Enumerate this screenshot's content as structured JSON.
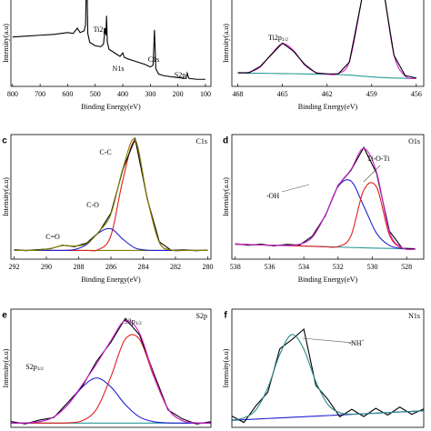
{
  "chart_data": [
    {
      "type": "line",
      "x_label": "Binding Energy(eV)",
      "y_label": "Intensity(a.u)",
      "xlim": [
        806,
        80
      ],
      "ylim": [
        0,
        100
      ],
      "xticks": [
        800,
        700,
        600,
        500,
        400,
        300,
        200,
        100
      ],
      "x": [
        800,
        750,
        700,
        650,
        600,
        580,
        565,
        555,
        540,
        535,
        531,
        527,
        520,
        500,
        480,
        470,
        464,
        461,
        459,
        456,
        450,
        430,
        410,
        400,
        395,
        380,
        350,
        320,
        300,
        290,
        285,
        280,
        270,
        250,
        200,
        170,
        166,
        160,
        130,
        100
      ],
      "series": [
        {
          "color": "#000000",
          "values": [
            56,
            57,
            58,
            59,
            61,
            60,
            66,
            61,
            63,
            70,
            140,
            60,
            50,
            46,
            45,
            48,
            66,
            58,
            80,
            50,
            42,
            38,
            34,
            38,
            33,
            31,
            28,
            25,
            22,
            24,
            64,
            20,
            14,
            12,
            10,
            9,
            15,
            9,
            8,
            8
          ]
        }
      ],
      "annotations": [
        {
          "text": "Ti2p"
        },
        {
          "text": "N1s"
        },
        {
          "text": "C1s"
        },
        {
          "text": "S2p"
        }
      ]
    },
    {
      "type": "line",
      "x_label": "Binding Energy(eV)",
      "y_label": "Intensity(a.u)",
      "xlim": [
        468.4,
        455.5
      ],
      "ylim": [
        0,
        100
      ],
      "xticks": [
        468,
        465,
        462,
        459,
        456
      ],
      "x": [
        468,
        467.25,
        466.5,
        465.75,
        465,
        464.25,
        463.5,
        462.75,
        462,
        461.25,
        460.5,
        459.75,
        459,
        458.25,
        457.5,
        456.75,
        456
      ],
      "series": [
        {
          "color": "#2a9a9a",
          "values": [
            15,
            15,
            14.9,
            14.7,
            14.5,
            14.3,
            14.1,
            13.9,
            13.7,
            13.4,
            12.8,
            11.8,
            10.8,
            10,
            9.5,
            9.2,
            9
          ]
        },
        {
          "color": "#d020d0",
          "values": [
            15.1,
            16.1,
            21.9,
            36.5,
            48.3,
            40.5,
            24.2,
            15.9,
            13.9,
            14.5,
            28.2,
            90.8,
            159.5,
            113,
            35.8,
            11.7,
            9.1
          ]
        },
        {
          "color": "#000000",
          "values": [
            15.6,
            15.4,
            22.6,
            35.8,
            49.1,
            39.7,
            24.9,
            15.2,
            14.3,
            14.1,
            27.5,
            91.6,
            158.7,
            114,
            35.1,
            12.3,
            9.4
          ]
        }
      ],
      "annotations": [
        {
          "text": "Ti2p",
          "sub": "1/2"
        }
      ]
    },
    {
      "type": "line",
      "panel": "c",
      "title": "C1s",
      "x_label": "Binding Energy(eV)",
      "y_label": "Intensity(a.u)",
      "xlim": [
        292.2,
        279.8
      ],
      "ylim": [
        0,
        100
      ],
      "xticks": [
        292,
        290,
        288,
        286,
        284,
        282,
        280
      ],
      "x": [
        292,
        291.25,
        290.5,
        289.75,
        289,
        288.25,
        287.5,
        286.75,
        286,
        285.25,
        284.5,
        283.75,
        283,
        282.25,
        281.5,
        280.75,
        280
      ],
      "series": [
        {
          "color": "#808000",
          "values": [
            7,
            7,
            7,
            7,
            7,
            7,
            7,
            7,
            7,
            7,
            7,
            7,
            7,
            7,
            7,
            7,
            7
          ]
        },
        {
          "color": "#e02020",
          "values": [
            7,
            7,
            7,
            7,
            7,
            7,
            7,
            7.8,
            18.9,
            64.2,
            94.1,
            49.1,
            13.5,
            7.3,
            7,
            7,
            7
          ]
        },
        {
          "color": "#2020d0",
          "values": [
            7,
            7,
            7,
            7,
            7,
            7.7,
            11.8,
            21.2,
            24.4,
            15.9,
            8.9,
            7.2,
            7,
            7,
            7,
            7,
            7
          ]
        },
        {
          "color": "#000000",
          "values": [
            7.5,
            6.8,
            7.6,
            8.3,
            11.2,
            10.1,
            12.9,
            21.5,
            36.9,
            72.4,
            96.8,
            48.5,
            13.9,
            7,
            7.4,
            6.8,
            7.2
          ]
        },
        {
          "color": "#808000",
          "values": [
            7,
            7,
            7.2,
            8.6,
            10.8,
            10.6,
            12.5,
            22,
            36.3,
            73.1,
            96,
            49.3,
            13.5,
            7.3,
            7,
            7,
            7
          ]
        }
      ],
      "annotations": [
        {
          "text": "C-C"
        },
        {
          "text": "C-O"
        },
        {
          "text": "C=O"
        }
      ]
    },
    {
      "type": "line",
      "panel": "d",
      "title": "O1s",
      "x_label": "Binding Energy(eV)",
      "y_label": "Intensity(a.u)",
      "xlim": [
        538.2,
        527
      ],
      "ylim": [
        0,
        100
      ],
      "xticks": [
        538,
        536,
        534,
        532,
        530,
        528
      ],
      "x": [
        538,
        537.25,
        536.5,
        535.75,
        535,
        534.25,
        533.5,
        532.75,
        532,
        531.25,
        530.5,
        529.75,
        529,
        528.25,
        527.5
      ],
      "series": [
        {
          "color": "#2a9a9a",
          "values": [
            12,
            11.7,
            11.4,
            11.1,
            10.9,
            10.6,
            10.3,
            10,
            9.7,
            9.4,
            9.1,
            8.8,
            8.6,
            8.3,
            8
          ]
        },
        {
          "color": "#2020d0",
          "values": [
            12,
            11.7,
            11.4,
            11.1,
            11,
            11.9,
            17.7,
            35.2,
            58.2,
            62.7,
            42.5,
            20.7,
            11,
            8.6,
            8
          ]
        },
        {
          "color": "#e02020",
          "values": [
            12,
            11.7,
            11.4,
            11.1,
            10.9,
            10.6,
            10.3,
            10,
            10.1,
            18.6,
            55.5,
            57.8,
            19.4,
            8.8,
            8
          ]
        },
        {
          "color": "#000000",
          "values": [
            12.4,
            11.2,
            12,
            10.6,
            11.8,
            11.3,
            18.5,
            34.6,
            59.3,
            71.2,
            89.7,
            68.9,
            22.5,
            8.7,
            8.4
          ]
        },
        {
          "color": "#d020d0",
          "values": [
            12,
            11.7,
            11.4,
            11.1,
            11,
            11.9,
            17.7,
            35.2,
            58.6,
            71.9,
            88.9,
            69.7,
            21.8,
            9.1,
            8
          ]
        }
      ],
      "annotations": [
        {
          "text": "-OH"
        },
        {
          "text": "Ti-O-Ti"
        }
      ]
    },
    {
      "type": "line",
      "panel": "e",
      "title": "S2p",
      "y_label": "Intensity(a.u)",
      "xlim": [
        172,
        158
      ],
      "ylim": [
        0,
        110
      ],
      "x": [
        172,
        171,
        170,
        169,
        168,
        167,
        166,
        165,
        164,
        163,
        162,
        161,
        160,
        159,
        158
      ],
      "series": [
        {
          "color": "#2a9a9a",
          "values": [
            4,
            4,
            4,
            4,
            4,
            4,
            4,
            4,
            4,
            4,
            4,
            4,
            4,
            4,
            4
          ]
        },
        {
          "color": "#e02020",
          "values": [
            4,
            4,
            4,
            4,
            4.2,
            6.2,
            17.2,
            47.2,
            82,
            82,
            47.2,
            17.2,
            6.2,
            4.2,
            4
          ]
        },
        {
          "color": "#2020d0",
          "values": [
            4,
            4.2,
            5.2,
            9.7,
            21.3,
            37.6,
            46,
            37.6,
            21.3,
            9.7,
            5.2,
            4.2,
            4,
            4,
            4
          ]
        },
        {
          "color": "#000000",
          "values": [
            5.5,
            3.2,
            6.8,
            9.1,
            23.4,
            38.2,
            61.5,
            79.3,
            101.2,
            86.1,
            50.3,
            16.2,
            7.9,
            3.1,
            5.2
          ]
        },
        {
          "color": "#d020d0",
          "values": [
            4,
            4.2,
            5.2,
            9.7,
            21.5,
            39.8,
            59.2,
            80.8,
            99.3,
            87.7,
            48.4,
            17.4,
            6.2,
            4.2,
            4
          ]
        }
      ],
      "annotations": [
        {
          "text": "S2p",
          "sub": "1/2"
        },
        {
          "text": "S2p",
          "sub": "3/2"
        }
      ]
    },
    {
      "type": "line",
      "panel": "f",
      "title": "N1s",
      "y_label": "Intensity(a.u)",
      "xlim": [
        406,
        394
      ],
      "ylim": [
        0,
        100
      ],
      "x": [
        406,
        405.25,
        404.5,
        403.75,
        403,
        402.25,
        401.5,
        400.75,
        400,
        399.25,
        398.5,
        397.75,
        397,
        396.25,
        395.5,
        394.75,
        394
      ],
      "series": [
        {
          "color": "#2020d0",
          "values": [
            6,
            6.5,
            7,
            7.5,
            8,
            8.5,
            9,
            9.5,
            10,
            10.5,
            11,
            11.5,
            12,
            12.5,
            13,
            13.5,
            14
          ]
        },
        {
          "color": "#000000",
          "values": [
            9.5,
            4.1,
            18.2,
            29.7,
            66.5,
            74.2,
            83.1,
            35.6,
            23.8,
            8.9,
            15.3,
            9.2,
            16.1,
            10.4,
            17.2,
            11.1,
            15.6
          ]
        },
        {
          "color": "#2a8a8a",
          "values": [
            6.2,
            8,
            14.8,
            33.5,
            61.8,
            78.5,
            66.2,
            38.8,
            19.5,
            12.4,
            11.2,
            11.5,
            12,
            12.5,
            13,
            13.5,
            14
          ]
        }
      ],
      "annotations": [
        {
          "text": "-NH",
          "sup": "+"
        }
      ]
    }
  ]
}
